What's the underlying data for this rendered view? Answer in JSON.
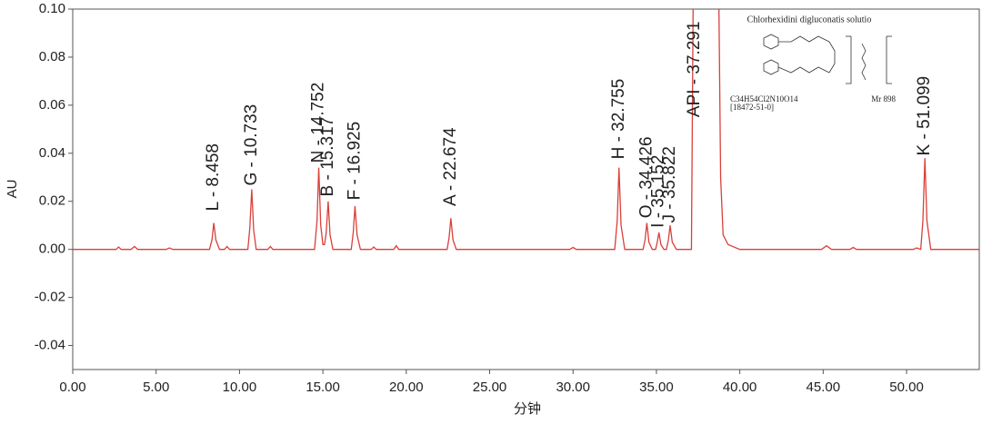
{
  "chart_data": {
    "type": "line",
    "x_label": "分钟",
    "y_label": "AU",
    "xlim": [
      0,
      54.36
    ],
    "ylim": [
      -0.05,
      0.1
    ],
    "xticks": [
      {
        "value": 0,
        "label": "0.00"
      },
      {
        "value": 5,
        "label": "5.00"
      },
      {
        "value": 10,
        "label": "10.00"
      },
      {
        "value": 15,
        "label": "15.00"
      },
      {
        "value": 20,
        "label": "20.00"
      },
      {
        "value": 25,
        "label": "25.00"
      },
      {
        "value": 30,
        "label": "30.00"
      },
      {
        "value": 35,
        "label": "35.00"
      },
      {
        "value": 40,
        "label": "40.00"
      },
      {
        "value": 45,
        "label": "45.00"
      },
      {
        "value": 50,
        "label": "50.00"
      }
    ],
    "yticks": [
      {
        "value": -0.04,
        "label": "-0.04"
      },
      {
        "value": -0.02,
        "label": "-0.02"
      },
      {
        "value": 0,
        "label": "0.00"
      },
      {
        "value": 0.02,
        "label": "0.02"
      },
      {
        "value": 0.04,
        "label": "0.04"
      },
      {
        "value": 0.06,
        "label": "0.06"
      },
      {
        "value": 0.08,
        "label": "0.08"
      },
      {
        "value": 0.1,
        "label": "0.10"
      }
    ],
    "x": [
      0,
      2.6,
      2.75,
      2.9,
      3.5,
      3.7,
      3.9,
      5.6,
      5.8,
      6.0,
      8.2,
      8.35,
      8.458,
      8.58,
      8.8,
      9.1,
      9.25,
      9.4,
      10.5,
      10.62,
      10.733,
      10.85,
      11.0,
      11.7,
      11.85,
      12.0,
      14.5,
      14.65,
      14.752,
      14.87,
      15.0,
      15.1,
      15.2,
      15.317,
      15.43,
      15.6,
      16.7,
      16.82,
      16.925,
      17.05,
      17.25,
      17.9,
      18.05,
      18.2,
      19.25,
      19.4,
      19.55,
      22.45,
      22.57,
      22.674,
      22.8,
      23.0,
      29.8,
      30.0,
      30.2,
      32.5,
      32.65,
      32.755,
      32.88,
      33.1,
      34.2,
      34.32,
      34.426,
      34.55,
      34.75,
      34.95,
      35.05,
      35.152,
      35.27,
      35.45,
      35.6,
      35.72,
      35.822,
      35.95,
      36.2,
      37.1,
      37.2,
      38.75,
      38.85,
      39.0,
      39.3,
      40.0,
      44.9,
      45.2,
      45.5,
      46.6,
      46.8,
      47.0,
      50.4,
      50.6,
      50.85,
      50.98,
      51.099,
      51.22,
      51.45,
      54.36
    ],
    "series": [
      {
        "color": "#d9403a",
        "values": [
          0,
          0,
          0.001,
          0,
          0,
          0.0012,
          0,
          0,
          0.0006,
          0,
          0,
          0.004,
          0.011,
          0.004,
          0,
          0,
          0.0012,
          0,
          0,
          0.009,
          0.025,
          0.008,
          0,
          0,
          0.0012,
          0,
          0,
          0.012,
          0.034,
          0.01,
          0.002,
          0.002,
          0.007,
          0.02,
          0.006,
          0,
          0,
          0.007,
          0.018,
          0.006,
          0,
          0,
          0.001,
          0,
          0,
          0.0015,
          0,
          0,
          0.005,
          0.013,
          0.004,
          0,
          0,
          0.0008,
          0,
          0,
          0.012,
          0.034,
          0.01,
          0,
          0,
          0.004,
          0.011,
          0.003,
          0,
          0,
          0.003,
          0.007,
          0.002,
          0,
          0,
          0.004,
          0.01,
          0.003,
          0,
          0,
          0.1,
          0.1,
          0.03,
          0.006,
          0.002,
          0,
          0,
          0.0015,
          0,
          0,
          0.0008,
          0,
          0,
          0.0006,
          0,
          0.012,
          0.038,
          0.012,
          0,
          0
        ]
      }
    ],
    "annotations": [
      {
        "text": "L - 8.458",
        "x": 8.458,
        "y": 0.016
      },
      {
        "text": "G - 10.733",
        "x": 10.733,
        "y": 0.0265
      },
      {
        "text": "N - 14.752",
        "x": 14.752,
        "y": 0.036
      },
      {
        "text": "B - 15.317",
        "x": 15.317,
        "y": 0.022
      },
      {
        "text": "F - 16.925",
        "x": 16.925,
        "y": 0.0205
      },
      {
        "text": "A - 22.674",
        "x": 22.674,
        "y": 0.018
      },
      {
        "text": "H - 32.755",
        "x": 32.755,
        "y": 0.0375
      },
      {
        "text": "O - 34.426",
        "x": 34.426,
        "y": 0.013
      },
      {
        "text": "I - 35.152",
        "x": 35.152,
        "y": 0.009
      },
      {
        "text": "J - 35.822",
        "x": 35.822,
        "y": 0.011
      },
      {
        "text": "API - 37.291",
        "x": 37.291,
        "y": 0.055
      },
      {
        "text": "K - 51.099",
        "x": 51.099,
        "y": 0.039
      }
    ],
    "inset": {
      "title": "Chlorhexidini digluconatis solutio",
      "formula": "C34H54Cl2N10O14",
      "cas": "[18472-51-0]",
      "mass": "Mr 898"
    }
  }
}
